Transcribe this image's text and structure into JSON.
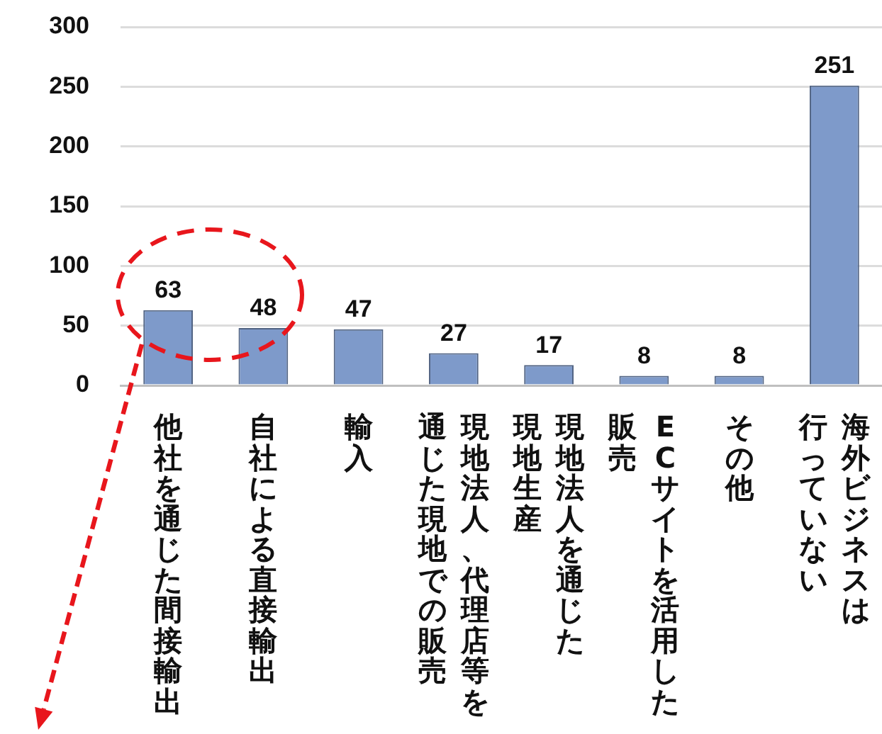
{
  "chart_data": {
    "type": "bar",
    "categories": [
      "他社を通じた間接輸出",
      "自社による直接輸出",
      "輸入",
      "現地法人、代理店等を通じた現地での販売",
      "現地法人を通じた現地生産",
      "ECサイトを活用した販売",
      "その他",
      "海外ビジネスは行っていない"
    ],
    "values": [
      63,
      48,
      47,
      27,
      17,
      8,
      8,
      251
    ],
    "color": "#7e9aca",
    "ylim": [
      0,
      300
    ],
    "yticks": [
      0,
      50,
      100,
      150,
      200,
      250,
      300
    ],
    "grid": "y",
    "data_labels": true
  }
}
